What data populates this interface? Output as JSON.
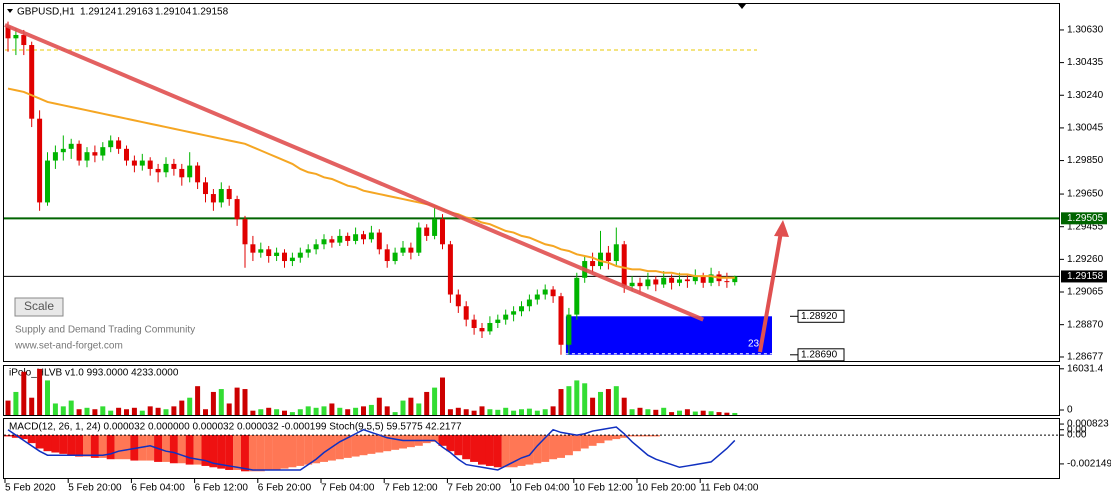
{
  "chart_data": {
    "type": "candlestick",
    "symbol": "GBPUSD,H1",
    "up_color": "#00b400",
    "down_color": "#e00000",
    "ma_color": "#f5a623",
    "ylim": [
      1.28653,
      1.30779
    ],
    "yticks": [
      {
        "value": 1.3063,
        "label": "1.30630"
      },
      1.30435,
      {
        "value": 1.3024,
        "label": "1.30240"
      },
      1.30045,
      {
        "value": 1.2985,
        "label": "1.29850"
      },
      {
        "value": 1.2965,
        "label": "1.29650"
      },
      1.29455,
      {
        "value": 1.2926,
        "label": "1.29260"
      },
      1.29065,
      {
        "value": 1.2887,
        "label": "1.28870"
      },
      1.28677
    ],
    "categories": [
      "5 Feb 2020",
      null,
      null,
      null,
      null,
      null,
      null,
      null,
      "5 Feb 20:00",
      null,
      null,
      null,
      null,
      null,
      null,
      null,
      "6 Feb 04:00",
      null,
      null,
      null,
      null,
      null,
      null,
      null,
      "6 Feb 12:00",
      null,
      null,
      null,
      null,
      null,
      null,
      null,
      "6 Feb 20:00",
      null,
      null,
      null,
      null,
      null,
      null,
      null,
      "7 Feb 04:00",
      null,
      null,
      null,
      null,
      null,
      null,
      null,
      "7 Feb 12:00",
      null,
      null,
      null,
      null,
      null,
      null,
      null,
      "7 Feb 20:00",
      null,
      null,
      null,
      null,
      null,
      null,
      null,
      "10 Feb 04:00",
      null,
      null,
      null,
      null,
      null,
      null,
      null,
      "10 Feb 12:00",
      null,
      null,
      null,
      null,
      null,
      null,
      null,
      "10 Feb 20:00",
      null,
      null,
      null,
      null,
      null,
      null,
      null,
      "11 Feb 04:00",
      null,
      null,
      null,
      null
    ],
    "candles": [
      [
        1.3065,
        1.3068,
        1.305,
        1.3058
      ],
      [
        1.3058,
        1.3064,
        1.3048,
        1.306
      ],
      [
        1.306,
        1.3063,
        1.3048,
        1.3054
      ],
      [
        1.3054,
        1.3056,
        1.3005,
        1.301
      ],
      [
        1.301,
        1.3015,
        1.2955,
        1.296
      ],
      [
        1.296,
        1.299,
        1.2958,
        1.2985
      ],
      [
        1.2985,
        1.2994,
        1.298,
        1.299
      ],
      [
        1.299,
        1.3,
        1.2985,
        1.2992
      ],
      [
        1.2992,
        1.2998,
        1.2986,
        1.2995
      ],
      [
        1.2995,
        1.2997,
        1.2982,
        1.2985
      ],
      [
        1.2985,
        1.2993,
        1.2981,
        1.299
      ],
      [
        1.299,
        1.2994,
        1.2984,
        1.2988
      ],
      [
        1.2988,
        1.2996,
        1.2985,
        1.2993
      ],
      [
        1.2993,
        1.3,
        1.299,
        1.2997
      ],
      [
        1.2997,
        1.2999,
        1.2989,
        1.2992
      ],
      [
        1.2992,
        1.2994,
        1.2982,
        1.2985
      ],
      [
        1.2985,
        1.2988,
        1.2978,
        1.2982
      ],
      [
        1.2982,
        1.2989,
        1.2979,
        1.2985
      ],
      [
        1.2985,
        1.2987,
        1.2976,
        1.298
      ],
      [
        1.298,
        1.2983,
        1.2972,
        1.2978
      ],
      [
        1.2978,
        1.2987,
        1.2975,
        1.2983
      ],
      [
        1.2983,
        1.2986,
        1.2976,
        1.298
      ],
      [
        1.298,
        1.2983,
        1.297,
        1.2975
      ],
      [
        1.2975,
        1.299,
        1.2972,
        1.2982
      ],
      [
        1.2982,
        1.2984,
        1.2968,
        1.2972
      ],
      [
        1.2972,
        1.2975,
        1.296,
        1.2965
      ],
      [
        1.2965,
        1.2968,
        1.2955,
        1.296
      ],
      [
        1.296,
        1.2972,
        1.2957,
        1.2968
      ],
      [
        1.2968,
        1.297,
        1.2958,
        1.2962
      ],
      [
        1.2962,
        1.2964,
        1.2946,
        1.295
      ],
      [
        1.295,
        1.2952,
        1.2921,
        1.2935
      ],
      [
        1.2935,
        1.294,
        1.2925,
        1.293
      ],
      [
        1.293,
        1.2936,
        1.2927,
        1.2932
      ],
      [
        1.2932,
        1.2934,
        1.2924,
        1.2928
      ],
      [
        1.2928,
        1.2933,
        1.2925,
        1.293
      ],
      [
        1.293,
        1.2932,
        1.2921,
        1.2925
      ],
      [
        1.2925,
        1.293,
        1.2922,
        1.2927
      ],
      [
        1.2927,
        1.2933,
        1.2924,
        1.293
      ],
      [
        1.293,
        1.2935,
        1.2927,
        1.2932
      ],
      [
        1.2932,
        1.2938,
        1.2929,
        1.2935
      ],
      [
        1.2935,
        1.2941,
        1.2932,
        1.2938
      ],
      [
        1.2938,
        1.294,
        1.2933,
        1.2936
      ],
      [
        1.2936,
        1.2944,
        1.2934,
        1.294
      ],
      [
        1.294,
        1.2942,
        1.2934,
        1.2937
      ],
      [
        1.2937,
        1.2945,
        1.2935,
        1.2941
      ],
      [
        1.2941,
        1.2943,
        1.2935,
        1.2938
      ],
      [
        1.2938,
        1.2946,
        1.2936,
        1.2942
      ],
      [
        1.2942,
        1.2944,
        1.2929,
        1.2932
      ],
      [
        1.2932,
        1.2935,
        1.2921,
        1.2925
      ],
      [
        1.2925,
        1.2933,
        1.2923,
        1.293
      ],
      [
        1.293,
        1.2937,
        1.2928,
        1.2933
      ],
      [
        1.2933,
        1.2936,
        1.2926,
        1.293
      ],
      [
        1.293,
        1.2948,
        1.2928,
        1.2945
      ],
      [
        1.2945,
        1.2947,
        1.2937,
        1.294
      ],
      [
        1.294,
        1.2957,
        1.2938,
        1.295
      ],
      [
        1.295,
        1.2953,
        1.2932,
        1.2935
      ],
      [
        1.2935,
        1.2937,
        1.29,
        1.2905
      ],
      [
        1.2905,
        1.2908,
        1.2894,
        1.2898
      ],
      [
        1.2898,
        1.2901,
        1.2886,
        1.289
      ],
      [
        1.289,
        1.2893,
        1.2881,
        1.2885
      ],
      [
        1.2885,
        1.2888,
        1.2879,
        1.2883
      ],
      [
        1.2883,
        1.2892,
        1.2881,
        1.2888
      ],
      [
        1.2888,
        1.2893,
        1.2885,
        1.289
      ],
      [
        1.289,
        1.2896,
        1.2887,
        1.2893
      ],
      [
        1.2893,
        1.2898,
        1.2889,
        1.2895
      ],
      [
        1.2895,
        1.2901,
        1.2892,
        1.2898
      ],
      [
        1.2898,
        1.2905,
        1.2895,
        1.2902
      ],
      [
        1.2902,
        1.2908,
        1.2899,
        1.2905
      ],
      [
        1.2905,
        1.2911,
        1.2902,
        1.2908
      ],
      [
        1.2908,
        1.291,
        1.29,
        1.2904
      ],
      [
        1.2904,
        1.2906,
        1.2869,
        1.2875
      ],
      [
        1.2875,
        1.2897,
        1.2869,
        1.2893
      ],
      [
        1.2893,
        1.2918,
        1.289,
        1.2915
      ],
      [
        1.2915,
        1.2928,
        1.2912,
        1.2925
      ],
      [
        1.2925,
        1.293,
        1.2918,
        1.2922
      ],
      [
        1.2922,
        1.2943,
        1.292,
        1.293
      ],
      [
        1.293,
        1.2934,
        1.292,
        1.2925
      ],
      [
        1.2925,
        1.2945,
        1.2922,
        1.2935
      ],
      [
        1.2935,
        1.2937,
        1.2906,
        1.291
      ],
      [
        1.291,
        1.2916,
        1.2907,
        1.2912
      ],
      [
        1.2912,
        1.2915,
        1.2906,
        1.291
      ],
      [
        1.291,
        1.2918,
        1.2908,
        1.2914
      ],
      [
        1.2914,
        1.2916,
        1.2907,
        1.2911
      ],
      [
        1.2911,
        1.2919,
        1.2909,
        1.2915
      ],
      [
        1.2915,
        1.2917,
        1.2908,
        1.2912
      ],
      [
        1.2912,
        1.2918,
        1.291,
        1.2914
      ],
      [
        1.2914,
        1.2917,
        1.2909,
        1.2913
      ],
      [
        1.2913,
        1.292,
        1.2911,
        1.2916
      ],
      [
        1.2916,
        1.2918,
        1.2909,
        1.2912
      ],
      [
        1.2912,
        1.2921,
        1.291,
        1.2917
      ],
      [
        1.2917,
        1.2919,
        1.291,
        1.2913
      ],
      [
        1.2913,
        1.2918,
        1.2909,
        1.29124
      ],
      [
        1.29124,
        1.29163,
        1.29104,
        1.29158
      ]
    ],
    "ma": [
      1.3028,
      1.3027,
      1.3026,
      1.3024,
      1.3022,
      1.302,
      1.3019,
      1.3018,
      1.3017,
      1.3016,
      1.3015,
      1.3014,
      1.3013,
      1.3012,
      1.3011,
      1.301,
      1.3009,
      1.3008,
      1.3007,
      1.3006,
      1.3005,
      1.3004,
      1.3003,
      1.3002,
      1.3001,
      1.3,
      1.2999,
      1.2998,
      1.2997,
      1.2996,
      1.2995,
      1.2993,
      1.2991,
      1.2989,
      1.2987,
      1.2985,
      1.2983,
      1.298,
      1.2978,
      1.2977,
      1.2975,
      1.2974,
      1.2972,
      1.297,
      1.2969,
      1.2967,
      1.2966,
      1.2965,
      1.2964,
      1.2963,
      1.2962,
      1.2961,
      1.296,
      1.2959,
      1.2958,
      1.2956,
      1.2954,
      1.2953,
      1.2951,
      1.295,
      1.2948,
      1.2947,
      1.2945,
      1.2943,
      1.2942,
      1.294,
      1.2939,
      1.2937,
      1.2935,
      1.2934,
      1.2932,
      1.2931,
      1.2929,
      1.2928,
      1.2927,
      1.2925,
      1.2924,
      1.2922,
      1.2921,
      1.292,
      1.292,
      1.2919,
      1.2919,
      1.2918,
      1.2918,
      1.2917,
      1.2917,
      1.2916,
      1.2916,
      1.2916,
      1.2915,
      1.2915,
      1.2915
    ],
    "resistance": 1.29505,
    "dashed_level": 1.3051,
    "trendline": {
      "start": [
        0,
        1.3066
      ],
      "end": [
        88,
        1.289
      ]
    },
    "zone": {
      "top": {
        "value": 1.2892,
        "label": "1.28920"
      },
      "bottom": {
        "value": 1.2869,
        "label": "1.28690"
      },
      "start": 71,
      "text": "23"
    },
    "button": "Scale",
    "watermark": [
      "Supply and Demand Trading Community",
      "www.set-and-forget.com"
    ],
    "volume": {
      "title": "iPolo_HLVB v1.0 993.0000 4233.0000",
      "ylim": [
        0,
        17000
      ],
      "yticks": [
        16031.4,
        0
      ],
      "values": [
        5000,
        8000,
        15000,
        6000,
        16000,
        12000,
        4000,
        3000,
        5000,
        2000,
        2500,
        2000,
        3000,
        1500,
        2500,
        2000,
        2500,
        1500,
        3000,
        2500,
        2000,
        3000,
        5000,
        6000,
        10000,
        2000,
        8000,
        9000,
        4000,
        9500,
        9000,
        1500,
        2000,
        2500,
        2000,
        1500,
        1000,
        2000,
        3000,
        2500,
        3000,
        4000,
        2500,
        2000,
        2500,
        3000,
        3500,
        6000,
        3000,
        1000,
        5000,
        6000,
        4000,
        8000,
        9500,
        13000,
        2000,
        2500,
        2000,
        1500,
        3000,
        2000,
        1800,
        2500,
        1500,
        2000,
        2200,
        1500,
        2000,
        3000,
        9000,
        10000,
        12000,
        11000,
        6000,
        8000,
        9000,
        10000,
        6000,
        2000,
        2500,
        2000,
        1800,
        2500,
        1000,
        1500,
        2000,
        1200,
        1500,
        1300,
        1000,
        800,
        700
      ]
    },
    "macd": {
      "title": "MACD(12, 26, 1, 24) 0.000032 0.000000 0.000032 0.000032 -0.000199  Stoch(9,5,5) 59.5775 42.2177",
      "ylim": [
        -0.0032,
        0.0012
      ],
      "yticks": [
        0.000823,
        {
          "value": 0.0004,
          "label": "0.00"
        },
        {
          "value": 0,
          "label": "0.00"
        },
        -0.002149
      ],
      "histogram": [
        -0.0001,
        -0.0002,
        -0.0003,
        -0.0006,
        -0.001,
        -0.0012,
        -0.0013,
        -0.0014,
        -0.0015,
        -0.0016,
        -0.0016,
        -0.0017,
        -0.0017,
        -0.0018,
        -0.0018,
        -0.0018,
        -0.0019,
        -0.0019,
        -0.0019,
        -0.002,
        -0.002,
        -0.0021,
        -0.0021,
        -0.0022,
        -0.0022,
        -0.0023,
        -0.0024,
        -0.0025,
        -0.0026,
        -0.0026,
        -0.0027,
        -0.0027,
        -0.0027,
        -0.0026,
        -0.0026,
        -0.0025,
        -0.0024,
        -0.0023,
        -0.0022,
        -0.0021,
        -0.002,
        -0.0019,
        -0.0018,
        -0.0017,
        -0.0016,
        -0.0015,
        -0.0014,
        -0.0013,
        -0.0012,
        -0.0011,
        -0.001,
        -0.0009,
        -0.0008,
        -0.0006,
        -0.0005,
        -0.0008,
        -0.0012,
        -0.0015,
        -0.0018,
        -0.002,
        -0.0022,
        -0.0023,
        -0.0024,
        -0.0024,
        -0.0024,
        -0.0023,
        -0.0022,
        -0.0021,
        -0.002,
        -0.0018,
        -0.0017,
        -0.0015,
        -0.0012,
        -0.001,
        -0.0008,
        -0.0006,
        -0.0004,
        -0.0003,
        -0.0002,
        -0.0001,
        -0.0001,
        -0.0001,
        -0.0001,
        0,
        0,
        0,
        0,
        0,
        0,
        0,
        0,
        0,
        0
      ],
      "line": [
        0.0004,
        0,
        -0.0004,
        -0.0008,
        -0.0012,
        -0.0015,
        -0.0015,
        -0.0015,
        -0.0015,
        -0.0015,
        -0.0015,
        -0.0015,
        -0.0015,
        -0.0014,
        -0.0012,
        -0.0011,
        -0.001,
        -0.0009,
        -0.0008,
        -0.001,
        -0.0012,
        -0.0013,
        -0.0015,
        -0.0017,
        -0.0018,
        -0.0019,
        -0.0021,
        -0.0022,
        -0.0023,
        -0.0024,
        -0.0025,
        -0.0026,
        -0.0026,
        -0.0026,
        -0.0026,
        -0.0026,
        -0.0026,
        -0.0026,
        -0.0022,
        -0.0018,
        -0.0013,
        -0.0009,
        -0.0005,
        -0.0002,
        0.0001,
        0.0004,
        0.0002,
        0,
        -0.0002,
        -0.0003,
        -0.0004,
        -0.0004,
        -0.0004,
        -0.0004,
        -0.0004,
        -0.0009,
        -0.0013,
        -0.0018,
        -0.0022,
        -0.0023,
        -0.0024,
        -0.0025,
        -0.0026,
        -0.0023,
        -0.002,
        -0.0017,
        -0.0015,
        -0.0008,
        -0.0002,
        0.0004,
        0.0002,
        0.0001,
        0,
        0.0001,
        0.0003,
        0.0004,
        0.0005,
        0.0006,
        0.0001,
        -0.0005,
        -0.001,
        -0.0015,
        -0.0018,
        -0.002,
        -0.0022,
        -0.0024,
        -0.0023,
        -0.0022,
        -0.0021,
        -0.002,
        -0.0015,
        -0.001,
        -0.0004
      ]
    }
  }
}
